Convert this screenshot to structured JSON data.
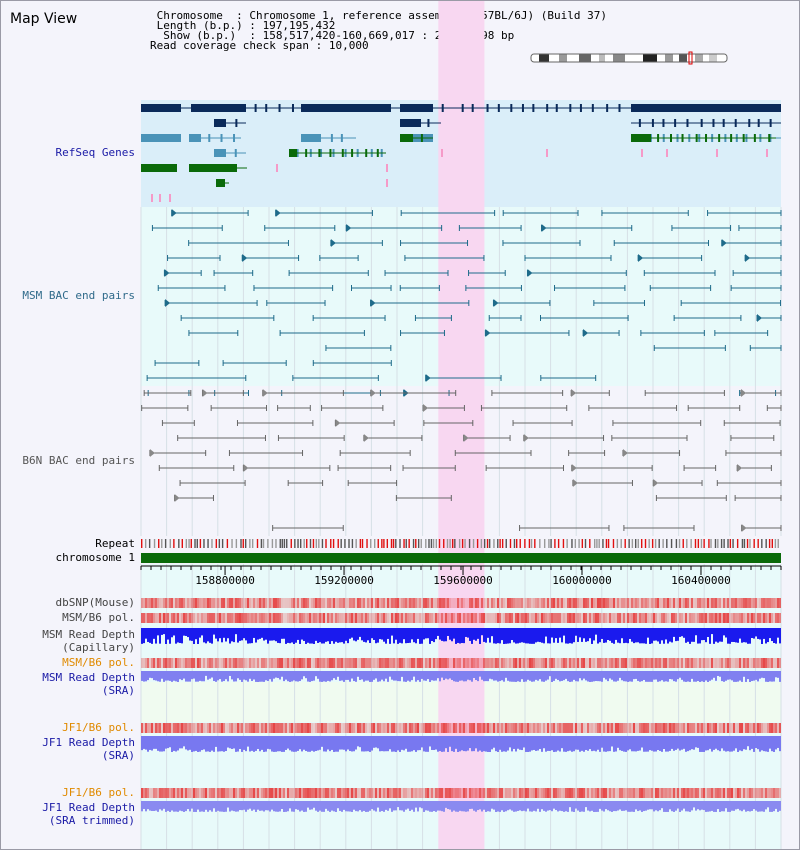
{
  "title": "Map View",
  "info": {
    "chromosome_label": "Chromosome",
    "chromosome_value": "Chromosome 1, reference assembly (C57BL/6J) (Build 37)",
    "length_label": "Length (b.p.)",
    "length_value": "197,195,432",
    "show_label": "Show (b.p.)",
    "show_value": "158,517,420-160,669,017 : 2,151,598 bp",
    "coverage_label": "Read coverage check span",
    "coverage_value": "10,000"
  },
  "view": {
    "start_bp": 158517420,
    "end_bp": 160669017,
    "highlight_start_bp": 159517000,
    "highlight_end_bp": 159672000
  },
  "axis_ticks": [
    "158800000",
    "159200000",
    "159600000",
    "160000000",
    "160400000"
  ],
  "axis_tick_values": [
    158800000,
    159200000,
    159600000,
    160000000,
    160400000
  ],
  "tracks": {
    "refseq": "RefSeq Genes",
    "msm_bac": "MSM BAC end pairs",
    "b6n_bac": "B6N BAC end pairs",
    "repeat": "Repeat",
    "chromosome": "chromosome 1",
    "dbsnp": "dbSNP(Mouse)",
    "msm_b6_pol_1": "MSM/B6 pol.",
    "msm_depth_cap_1": "MSM Read Depth",
    "msm_depth_cap_2": "(Capillary)",
    "msm_b6_pol_2": "MSM/B6 pol.",
    "msm_depth_sra_1": "MSM Read Depth",
    "msm_depth_sra_2": "(SRA)",
    "jf1_b6_pol_1": "JF1/B6 pol.",
    "jf1_depth_sra_1": "JF1 Read Depth",
    "jf1_depth_sra_2": "(SRA)",
    "jf1_b6_pol_2": "JF1/B6 pol.",
    "jf1_depth_trim_1": "JF1 Read Depth",
    "jf1_depth_trim_2": "(SRA trimmed)"
  },
  "colors": {
    "refseq_label": "#1a1aa6",
    "msm_label": "#2f6a8a",
    "b6n_label": "#555555",
    "orange_label": "#e08a00",
    "blue_label": "#1a1aa6",
    "gray_label": "#444444",
    "gene_dark": "#0a2a5a",
    "gene_mid": "#4a93b8",
    "gene_green": "#0a6a0a",
    "msm_pair": "#1e6b8a",
    "b6n_pair": "#666666",
    "highlight": "#f8d7f1"
  }
}
